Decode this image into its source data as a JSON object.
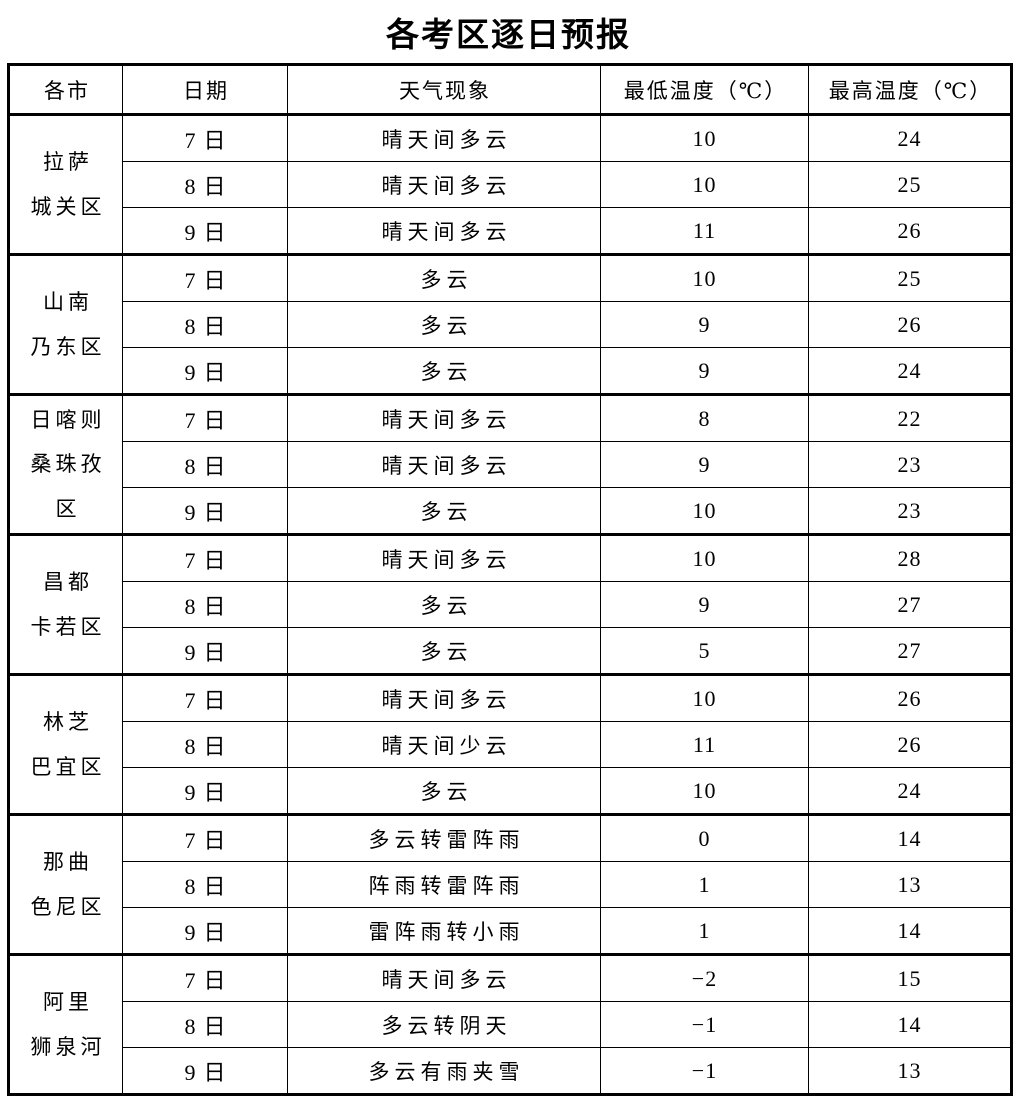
{
  "title": "各考区逐日预报",
  "colors": {
    "border": "#000000",
    "text": "#000000",
    "background": "#ffffff"
  },
  "table": {
    "headers": [
      "各市",
      "日期",
      "天气现象",
      "最低温度（℃）",
      "最高温度（℃）"
    ],
    "groups": [
      {
        "city": "拉萨\n城关区",
        "rows": [
          {
            "date": "7日",
            "weather": "晴天间多云",
            "min": "10",
            "max": "24"
          },
          {
            "date": "8日",
            "weather": "晴天间多云",
            "min": "10",
            "max": "25"
          },
          {
            "date": "9日",
            "weather": "晴天间多云",
            "min": "11",
            "max": "26"
          }
        ]
      },
      {
        "city": "山南\n乃东区",
        "rows": [
          {
            "date": "7日",
            "weather": "多云",
            "min": "10",
            "max": "25"
          },
          {
            "date": "8日",
            "weather": "多云",
            "min": "9",
            "max": "26"
          },
          {
            "date": "9日",
            "weather": "多云",
            "min": "9",
            "max": "24"
          }
        ]
      },
      {
        "city": "日喀则\n桑珠孜\n区",
        "rows": [
          {
            "date": "7日",
            "weather": "晴天间多云",
            "min": "8",
            "max": "22"
          },
          {
            "date": "8日",
            "weather": "晴天间多云",
            "min": "9",
            "max": "23"
          },
          {
            "date": "9日",
            "weather": "多云",
            "min": "10",
            "max": "23"
          }
        ]
      },
      {
        "city": "昌都\n卡若区",
        "rows": [
          {
            "date": "7日",
            "weather": "晴天间多云",
            "min": "10",
            "max": "28"
          },
          {
            "date": "8日",
            "weather": "多云",
            "min": "9",
            "max": "27"
          },
          {
            "date": "9日",
            "weather": "多云",
            "min": "5",
            "max": "27"
          }
        ]
      },
      {
        "city": "林芝\n巴宜区",
        "rows": [
          {
            "date": "7日",
            "weather": "晴天间多云",
            "min": "10",
            "max": "26"
          },
          {
            "date": "8日",
            "weather": "晴天间少云",
            "min": "11",
            "max": "26"
          },
          {
            "date": "9日",
            "weather": "多云",
            "min": "10",
            "max": "24"
          }
        ]
      },
      {
        "city": "那曲\n色尼区",
        "rows": [
          {
            "date": "7日",
            "weather": "多云转雷阵雨",
            "min": "0",
            "max": "14"
          },
          {
            "date": "8日",
            "weather": "阵雨转雷阵雨",
            "min": "1",
            "max": "13"
          },
          {
            "date": "9日",
            "weather": "雷阵雨转小雨",
            "min": "1",
            "max": "14"
          }
        ]
      },
      {
        "city": "阿里\n狮泉河",
        "rows": [
          {
            "date": "7日",
            "weather": "晴天间多云",
            "min": "−2",
            "max": "15"
          },
          {
            "date": "8日",
            "weather": "多云转阴天",
            "min": "−1",
            "max": "14"
          },
          {
            "date": "9日",
            "weather": "多云有雨夹雪",
            "min": "−1",
            "max": "13"
          }
        ]
      }
    ]
  }
}
